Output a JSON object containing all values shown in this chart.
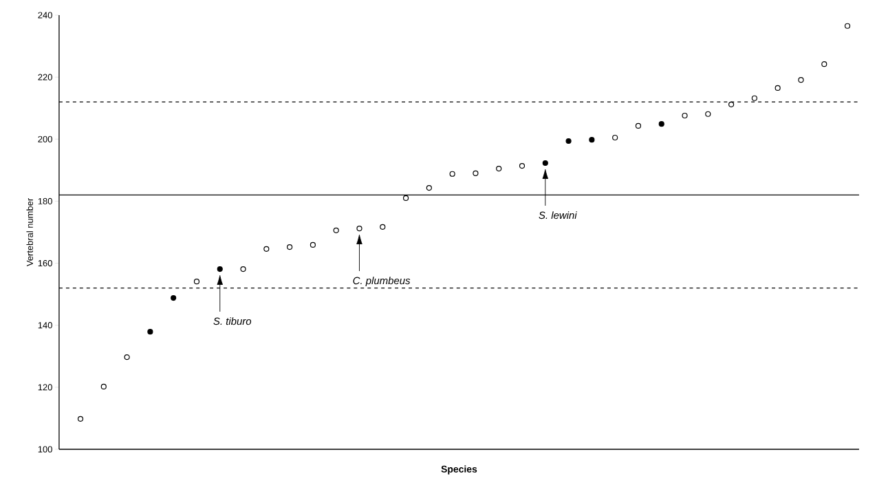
{
  "chart_data": {
    "type": "scatter",
    "xlabel": "Species",
    "ylabel": "Vertebral number",
    "categories": [
      null,
      null,
      null,
      null,
      null,
      null,
      null,
      null,
      null,
      null,
      null,
      null,
      null,
      null,
      null,
      null,
      null,
      null,
      null,
      null,
      null,
      null,
      null,
      null,
      null,
      null,
      null,
      null,
      null,
      null,
      null,
      null,
      null,
      null
    ],
    "series": [
      {
        "color": "#ffffff",
        "values": [
          109.8,
          120.2,
          129.7,
          null,
          null,
          154.1,
          null,
          158.1,
          164.6,
          165.2,
          165.9,
          170.6,
          171.2,
          171.7,
          181.0,
          184.3,
          188.8,
          189.0,
          190.5,
          191.4,
          null,
          null,
          null,
          200.5,
          204.3,
          null,
          207.6,
          208.1,
          211.2,
          213.2,
          216.5,
          219.1,
          224.2,
          236.5
        ]
      },
      {
        "color": "#000000",
        "values": [
          null,
          null,
          null,
          137.9,
          148.8,
          null,
          158.1,
          null,
          null,
          null,
          null,
          null,
          null,
          null,
          null,
          null,
          null,
          null,
          null,
          null,
          192.3,
          199.4,
          199.8,
          null,
          null,
          204.9,
          null,
          null,
          null,
          null,
          null,
          null,
          null,
          null
        ]
      }
    ],
    "ylim": [
      100,
      240
    ],
    "yticks": [
      100,
      120,
      140,
      160,
      180,
      200,
      220,
      240
    ],
    "tick_labels": "y",
    "grid": false,
    "marker": "circle",
    "ref_lines": [
      {
        "axis": "y",
        "value": 212,
        "color": "#000000",
        "line_style": "dashed"
      },
      {
        "axis": "y",
        "value": 182,
        "color": "#000000",
        "line_style": "solid"
      },
      {
        "axis": "y",
        "value": 152,
        "color": "#000000",
        "line_style": "dashed"
      }
    ],
    "annotations": [
      "S. tiburo",
      "C. plumbeus",
      "S. lewini"
    ]
  }
}
